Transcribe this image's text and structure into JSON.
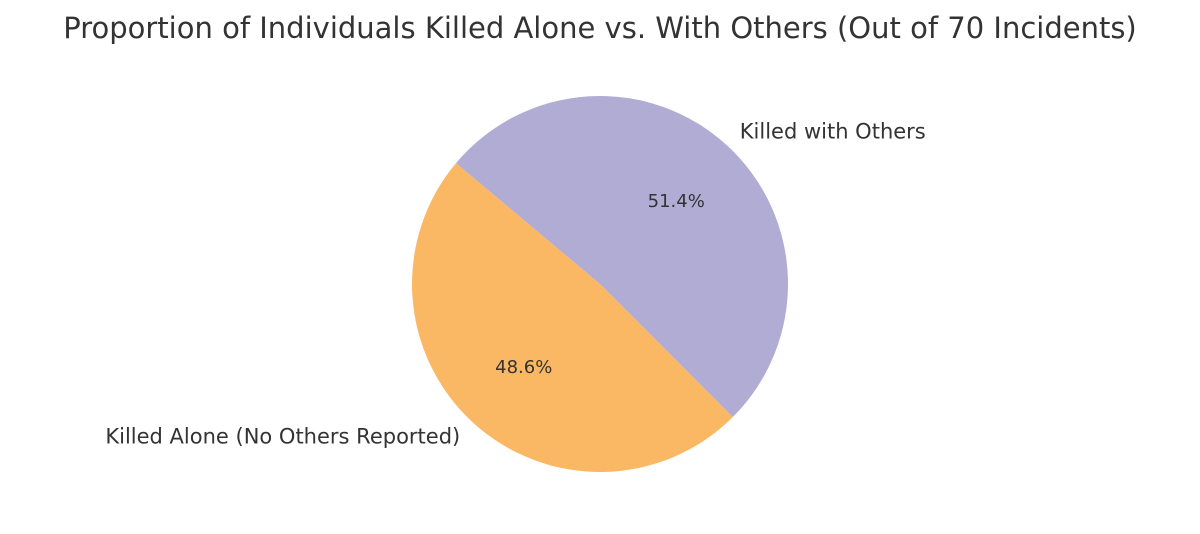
{
  "chart_data": {
    "type": "pie",
    "title": "Proportion of Individuals Killed Alone vs. With Others (Out of 70 Incidents)",
    "slices": [
      {
        "label": "Killed Alone (No Others Reported)",
        "value": 48.6,
        "percent_label": "48.6%",
        "color": "#fbb864"
      },
      {
        "label": "Killed with Others",
        "value": 51.4,
        "percent_label": "51.4%",
        "color": "#b1acd3"
      }
    ],
    "start_angle_deg": 140,
    "direction": "counterclockwise"
  }
}
